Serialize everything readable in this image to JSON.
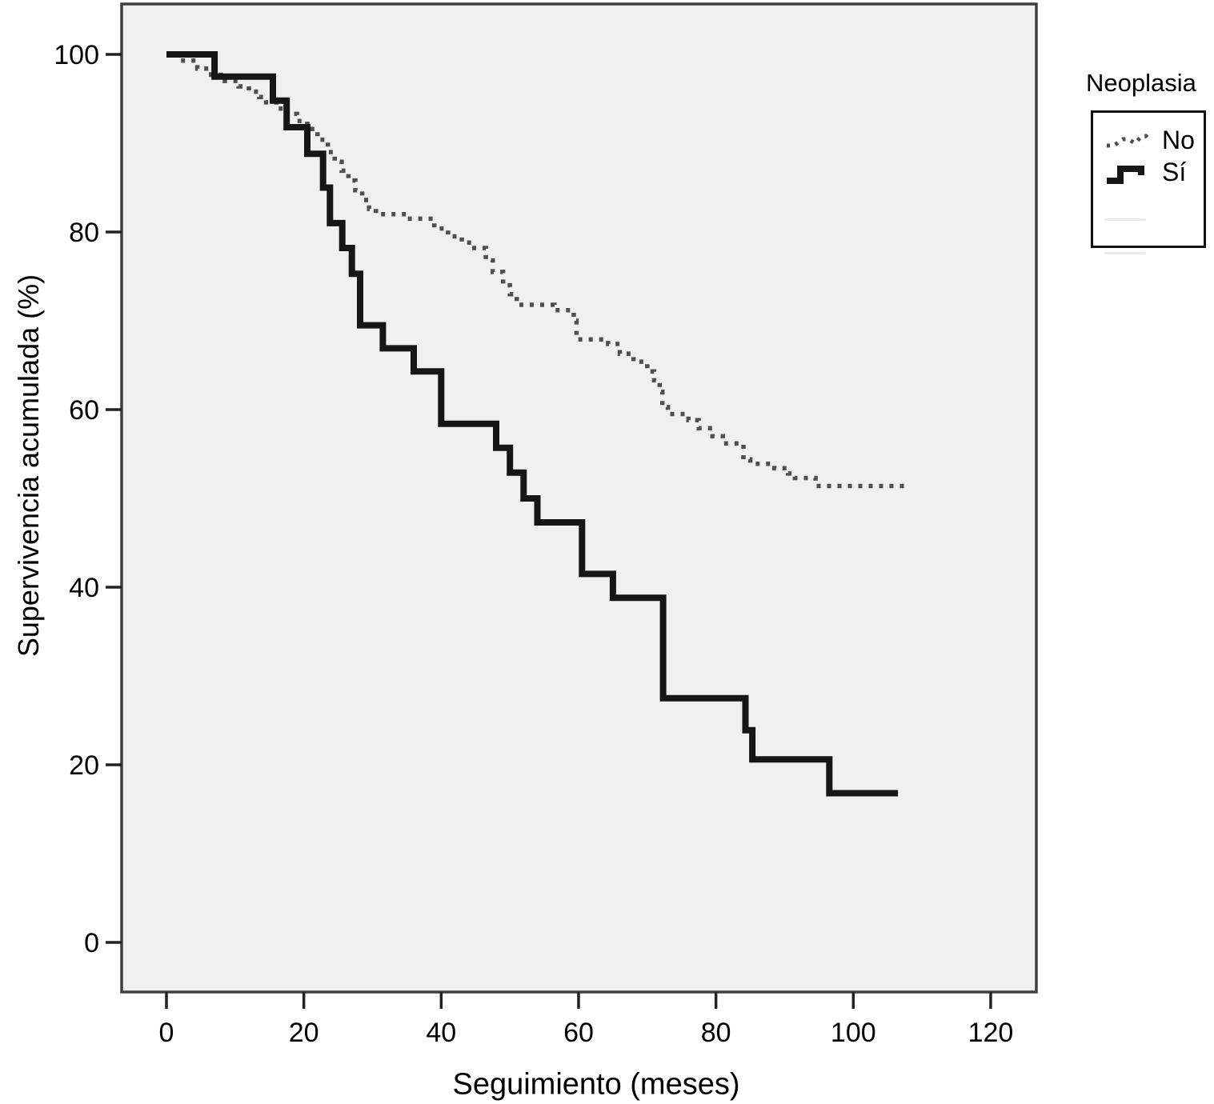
{
  "figure": {
    "x_axis_title": "Seguimiento (meses)",
    "y_axis_title": "Supervivencia acumulada (%)"
  },
  "legend": {
    "title": "Neoplasia",
    "entries": [
      {
        "label": "No",
        "style": "dotted"
      },
      {
        "label": "Sí",
        "style": "solid"
      }
    ],
    "empty_faint_rows": 2
  },
  "colors": {
    "plot_background": "#f0f0f0",
    "plot_border": "#3f3f3f",
    "series_no": "#4f4f4f",
    "series_si": "#161616",
    "text": "#000000",
    "legend_border": "#111111",
    "legend_faint_line": "#ebebeb"
  },
  "chart_data": {
    "type": "line",
    "subtype": "kaplan-meier-step",
    "title": "",
    "xlabel": "Seguimiento (meses)",
    "ylabel": "Supervivencia acumulada (%)",
    "x_ticks": [
      0,
      20,
      40,
      60,
      80,
      100,
      120
    ],
    "y_ticks": [
      0,
      20,
      40,
      60,
      80,
      100
    ],
    "xlim": [
      -6.5,
      126.5
    ],
    "ylim": [
      -6.5,
      105.5
    ],
    "grid": false,
    "legend_position": "outside-right",
    "legend_title": "Neoplasia",
    "series": [
      {
        "name": "No",
        "style": "dotted",
        "color": "#4f4f4f",
        "points": [
          [
            0,
            100
          ],
          [
            2,
            99.3
          ],
          [
            4.5,
            98.4
          ],
          [
            6.5,
            97.7
          ],
          [
            8.5,
            97
          ],
          [
            10.5,
            96.4
          ],
          [
            12,
            95.8
          ],
          [
            13.5,
            95.2
          ],
          [
            14.5,
            94.6
          ],
          [
            16,
            93.9
          ],
          [
            17.5,
            93.3
          ],
          [
            19,
            92.5
          ],
          [
            20.5,
            91.6
          ],
          [
            22,
            90.4
          ],
          [
            23.5,
            89
          ],
          [
            24.5,
            87.9
          ],
          [
            25.5,
            86.9
          ],
          [
            26.5,
            85.8
          ],
          [
            27.5,
            84.7
          ],
          [
            28.5,
            83.6
          ],
          [
            29.5,
            82.6
          ],
          [
            30.5,
            82
          ],
          [
            35,
            81.5
          ],
          [
            39,
            80.4
          ],
          [
            41,
            79.5
          ],
          [
            43,
            78.8
          ],
          [
            44.5,
            78.2
          ],
          [
            46.5,
            76.8
          ],
          [
            47.5,
            75.5
          ],
          [
            49,
            74
          ],
          [
            50,
            73
          ],
          [
            51,
            71.8
          ],
          [
            56.5,
            71.2
          ],
          [
            59.3,
            70
          ],
          [
            59.7,
            67.9
          ],
          [
            64.3,
            67.4
          ],
          [
            66,
            66.3
          ],
          [
            68,
            65.4
          ],
          [
            70,
            64.3
          ],
          [
            71,
            63.3
          ],
          [
            71.8,
            62
          ],
          [
            72.2,
            60.3
          ],
          [
            73,
            59.5
          ],
          [
            76,
            58.8
          ],
          [
            77.5,
            57.9
          ],
          [
            79.5,
            57
          ],
          [
            81,
            56.2
          ],
          [
            84,
            54.4
          ],
          [
            85,
            53.9
          ],
          [
            88.5,
            53.4
          ],
          [
            90.5,
            52.8
          ],
          [
            91.5,
            52.3
          ],
          [
            94.5,
            51.4
          ],
          [
            108.3,
            51.4
          ]
        ]
      },
      {
        "name": "Sí",
        "style": "solid",
        "color": "#161616",
        "points": [
          [
            0,
            100
          ],
          [
            7,
            97.5
          ],
          [
            15.5,
            94.8
          ],
          [
            17.5,
            91.8
          ],
          [
            20.5,
            88.8
          ],
          [
            22.8,
            85
          ],
          [
            23.8,
            81
          ],
          [
            25.6,
            78.2
          ],
          [
            27,
            75.3
          ],
          [
            28.2,
            69.5
          ],
          [
            31.5,
            66.9
          ],
          [
            36,
            64.3
          ],
          [
            40,
            58.4
          ],
          [
            48,
            55.7
          ],
          [
            50,
            52.9
          ],
          [
            52,
            50
          ],
          [
            54,
            47.3
          ],
          [
            60.5,
            41.5
          ],
          [
            65,
            38.8
          ],
          [
            72.3,
            27.5
          ],
          [
            84.3,
            23.9
          ],
          [
            85.3,
            20.6
          ],
          [
            96.5,
            16.8
          ],
          [
            106.5,
            16.8
          ]
        ]
      }
    ]
  }
}
